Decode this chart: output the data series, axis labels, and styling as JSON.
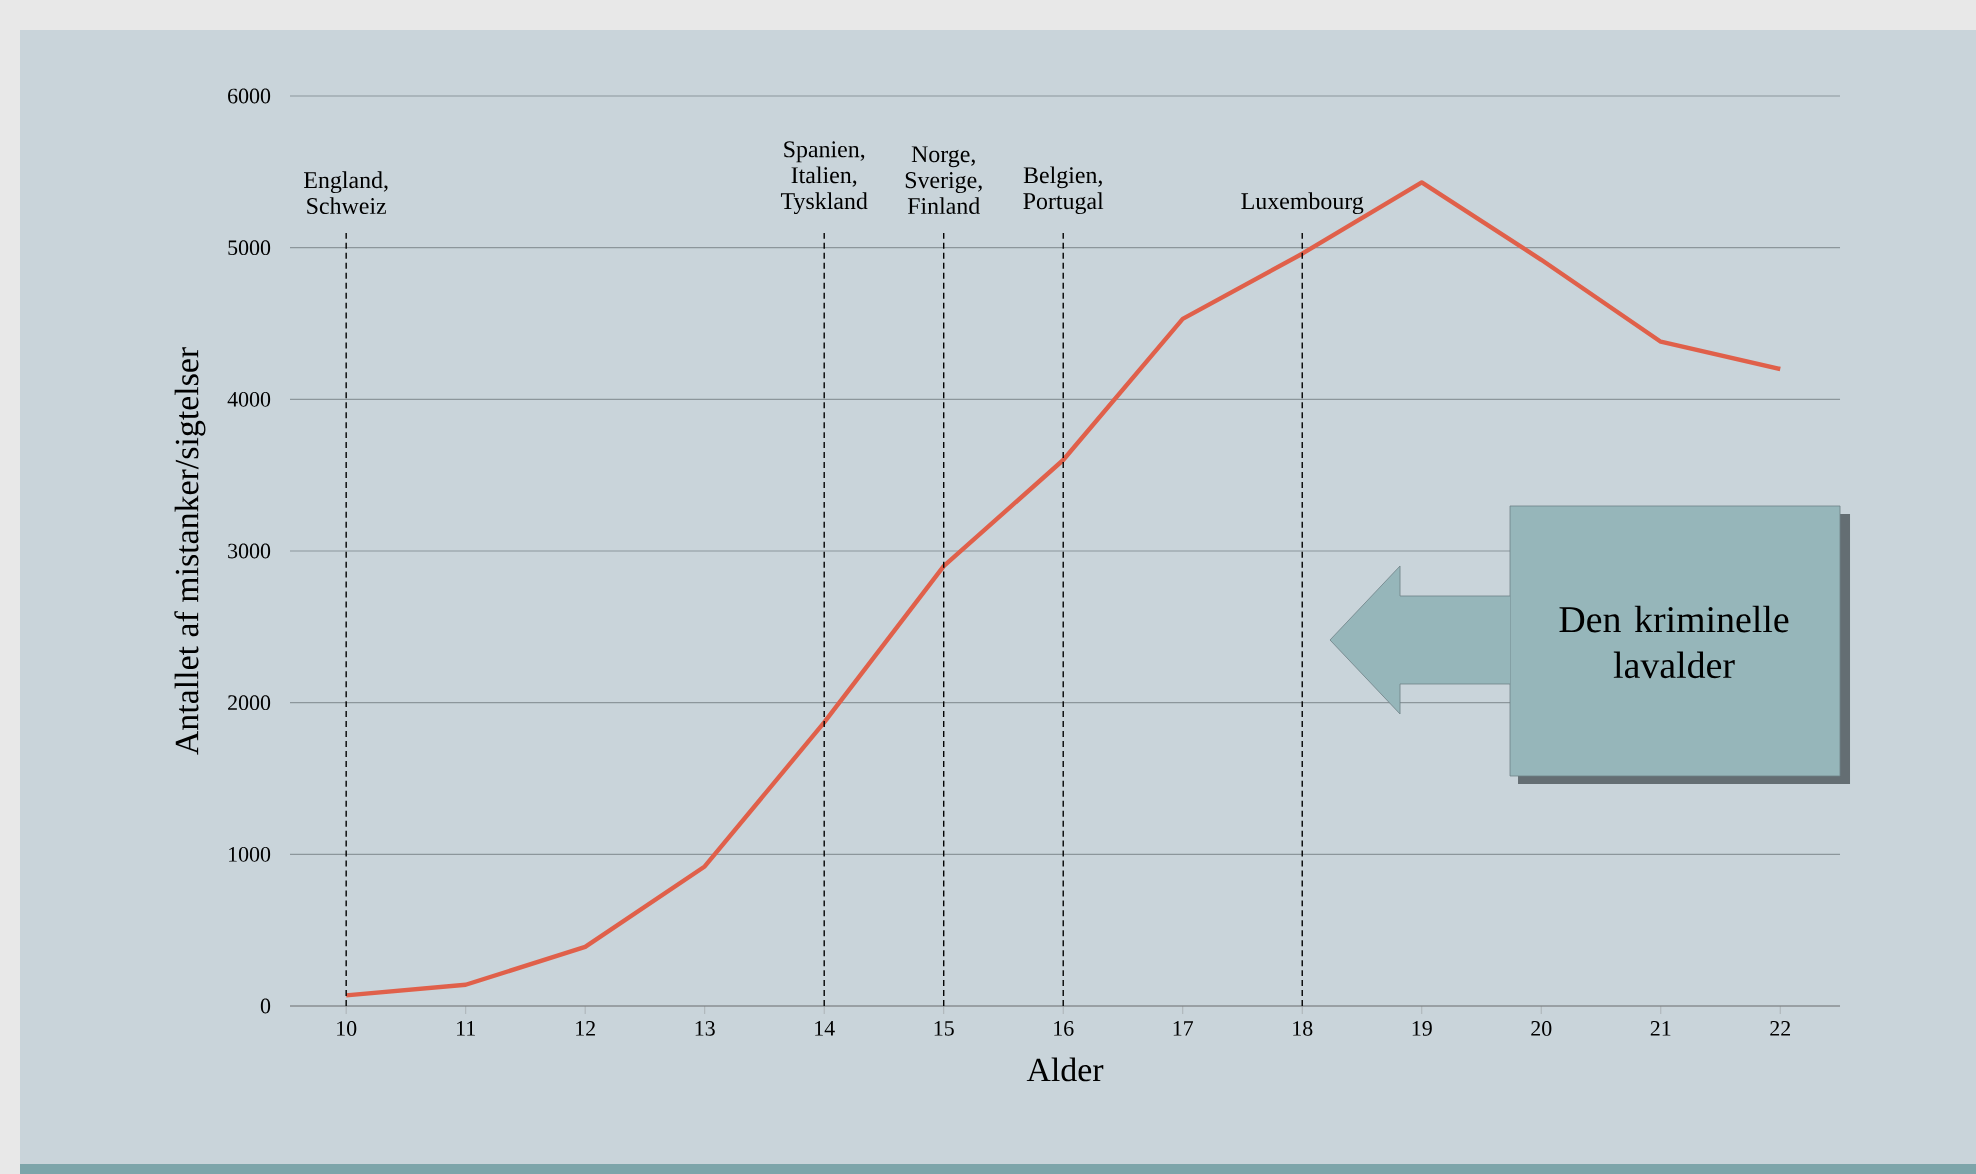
{
  "chart_data": {
    "type": "line",
    "xlabel": "Alder",
    "ylabel": "Antallet af mistanker/sigtelser",
    "x": [
      10,
      11,
      12,
      13,
      14,
      15,
      16,
      17,
      18,
      19,
      20,
      21,
      22
    ],
    "series": [
      {
        "color": "#e0604a",
        "values": [
          70,
          140,
          390,
          920,
          1870,
          2900,
          3600,
          4530,
          4960,
          5430,
          4920,
          4380,
          4200
        ]
      }
    ],
    "xlim": [
      9.53,
      22.5
    ],
    "xticks": [
      10,
      11,
      12,
      13,
      14,
      15,
      16,
      17,
      18,
      19,
      20,
      21,
      22
    ],
    "ylim": [
      0,
      6000
    ],
    "yticks": [
      0,
      1000,
      2000,
      3000,
      4000,
      5000,
      6000
    ],
    "grid": "y",
    "marker": "none",
    "line_style": "solid",
    "ref_lines": [
      {
        "axis": "x",
        "value": 10,
        "label": "England, Schweiz",
        "color": "#000000",
        "line_style": "dashed"
      },
      {
        "axis": "x",
        "value": 14,
        "label": "Spanien, Italien, Tyskland",
        "color": "#000000",
        "line_style": "dashed"
      },
      {
        "axis": "x",
        "value": 15,
        "label": "Norge, Sverige, Finland",
        "color": "#000000",
        "line_style": "dashed"
      },
      {
        "axis": "x",
        "value": 16,
        "label": "Belgien, Portugal",
        "color": "#000000",
        "line_style": "dashed"
      },
      {
        "axis": "x",
        "value": 18,
        "label": "Luxembourg",
        "color": "#000000",
        "line_style": "dashed"
      }
    ],
    "annotations": [
      "Den kriminelle lavalder"
    ]
  }
}
